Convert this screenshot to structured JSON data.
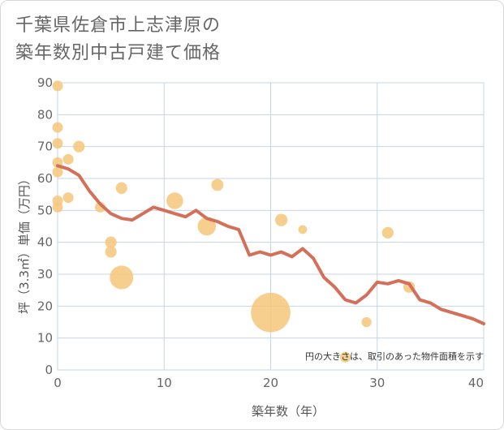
{
  "title": {
    "line1": "千葉県佐倉市上志津原の",
    "line2": "築年数別中古戸建て価格"
  },
  "chart_data": {
    "type": "scatter",
    "xlabel": "築年数（年）",
    "ylabel": "坪（3.3㎡）単価（万円）",
    "xlim": [
      0,
      40
    ],
    "ylim": [
      0,
      90
    ],
    "x_ticks": [
      0,
      10,
      20,
      30,
      40
    ],
    "y_ticks": [
      0,
      10,
      20,
      30,
      40,
      50,
      60,
      70,
      80,
      90
    ],
    "grid": true,
    "note": "円の大きさは、取引のあった物件面積を示す",
    "colors": {
      "bubble": "#f5c880",
      "line": "#d4705a",
      "grid": "#c8d4e4"
    },
    "bubbles": [
      {
        "x": 0,
        "y": 89,
        "size": 1
      },
      {
        "x": 0,
        "y": 76,
        "size": 1
      },
      {
        "x": 0,
        "y": 71,
        "size": 1
      },
      {
        "x": 0,
        "y": 65,
        "size": 1
      },
      {
        "x": 0,
        "y": 62,
        "size": 1
      },
      {
        "x": 0,
        "y": 53,
        "size": 1
      },
      {
        "x": 0,
        "y": 51,
        "size": 1
      },
      {
        "x": 1,
        "y": 66,
        "size": 1
      },
      {
        "x": 1,
        "y": 54,
        "size": 1
      },
      {
        "x": 2,
        "y": 70,
        "size": 1.2
      },
      {
        "x": 4,
        "y": 51,
        "size": 1
      },
      {
        "x": 5,
        "y": 40,
        "size": 1.2
      },
      {
        "x": 5,
        "y": 37,
        "size": 1.2
      },
      {
        "x": 6,
        "y": 57,
        "size": 1.2
      },
      {
        "x": 6,
        "y": 29,
        "size": 5
      },
      {
        "x": 11,
        "y": 53,
        "size": 2.5
      },
      {
        "x": 14,
        "y": 45,
        "size": 3
      },
      {
        "x": 15,
        "y": 58,
        "size": 1.3
      },
      {
        "x": 20,
        "y": 18,
        "size": 14
      },
      {
        "x": 21,
        "y": 47,
        "size": 1.4
      },
      {
        "x": 23,
        "y": 44,
        "size": 0.7
      },
      {
        "x": 27,
        "y": 4,
        "size": 1
      },
      {
        "x": 29,
        "y": 15,
        "size": 0.9
      },
      {
        "x": 31,
        "y": 43,
        "size": 1.2
      },
      {
        "x": 33,
        "y": 26,
        "size": 1.2
      }
    ],
    "trend": {
      "x": [
        0,
        1,
        2,
        3,
        4,
        5,
        6,
        7,
        8,
        9,
        10,
        11,
        12,
        13,
        14,
        15,
        16,
        17,
        18,
        19,
        20,
        21,
        22,
        23,
        24,
        25,
        26,
        27,
        28,
        29,
        30,
        31,
        32,
        33,
        34,
        35,
        36,
        37,
        38,
        39,
        40
      ],
      "y": [
        64,
        63,
        61,
        56,
        52,
        49,
        47.5,
        47,
        49,
        51,
        50,
        49,
        48,
        50,
        47.5,
        46.5,
        45,
        44,
        36,
        37,
        36,
        37,
        35.5,
        38,
        35,
        29,
        26,
        22,
        21,
        23.5,
        27.5,
        27,
        28,
        27,
        22,
        21,
        19,
        18,
        17,
        16,
        14.5
      ]
    }
  }
}
